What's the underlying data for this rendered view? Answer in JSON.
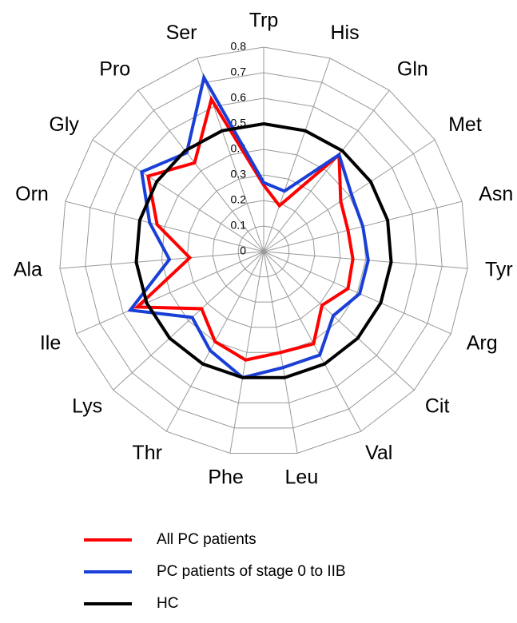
{
  "chart_data": {
    "type": "radar",
    "categories": [
      "Trp",
      "His",
      "Gln",
      "Met",
      "Asn",
      "Tyr",
      "Arg",
      "Cit",
      "Val",
      "Leu",
      "Phe",
      "Thr",
      "Lys",
      "Ile",
      "Ala",
      "Orn",
      "Gly",
      "Pro",
      "Ser"
    ],
    "series": [
      {
        "name": "All PC patients",
        "color": "#ff0000",
        "values": [
          0.26,
          0.19,
          0.48,
          0.36,
          0.34,
          0.35,
          0.36,
          0.31,
          0.41,
          0.4,
          0.43,
          0.4,
          0.33,
          0.54,
          0.29,
          0.43,
          0.54,
          0.44,
          0.63
        ]
      },
      {
        "name": "PC patients of stage 0 to IIB",
        "color": "#1a3fd6",
        "values": [
          0.27,
          0.25,
          0.48,
          0.41,
          0.4,
          0.41,
          0.41,
          0.37,
          0.46,
          0.46,
          0.5,
          0.44,
          0.38,
          0.57,
          0.37,
          0.46,
          0.57,
          0.49,
          0.72
        ]
      },
      {
        "name": "HC",
        "color": "#000000",
        "values": [
          0.5,
          0.5,
          0.5,
          0.5,
          0.5,
          0.5,
          0.5,
          0.5,
          0.5,
          0.5,
          0.5,
          0.5,
          0.5,
          0.5,
          0.5,
          0.5,
          0.5,
          0.5,
          0.5
        ]
      }
    ],
    "rlim": [
      0,
      0.8
    ],
    "rticks": [
      0,
      0.1,
      0.2,
      0.3,
      0.4,
      0.5,
      0.6,
      0.7,
      0.8
    ],
    "grid": true
  }
}
